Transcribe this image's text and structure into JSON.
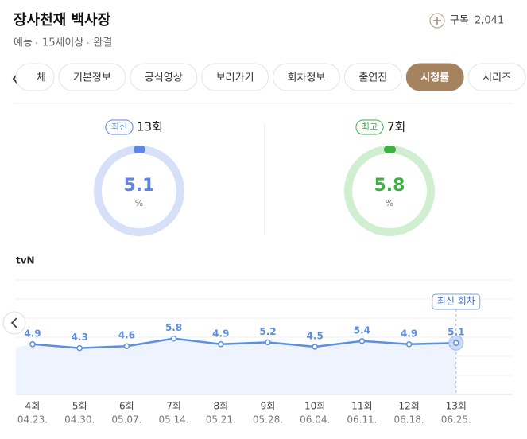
{
  "header": {
    "title": "장사천재 백사장",
    "meta": [
      "예능",
      "15세이상",
      "완결"
    ],
    "subscribe_label": "구독",
    "subscribe_count": "2,041"
  },
  "tabs": {
    "items": [
      "체",
      "기본정보",
      "공식영상",
      "보러가기",
      "회차정보",
      "출연진",
      "시청률",
      "시리즈"
    ],
    "active": 6
  },
  "stats": [
    {
      "badge": "최신",
      "episode": "13회",
      "value": 5.1,
      "unit": "%",
      "color": "#5b86e5",
      "ring_color": "#d6e0f8"
    },
    {
      "badge": "최고",
      "episode": "7회",
      "value": 5.8,
      "unit": "%",
      "color": "#3cb043",
      "ring_color": "#d0efd0"
    }
  ],
  "chart_data": {
    "type": "line",
    "title": "tvN",
    "categories": [
      "4회",
      "5회",
      "6회",
      "7회",
      "8회",
      "9회",
      "10회",
      "11회",
      "12회",
      "13회"
    ],
    "dates": [
      "04.23.",
      "04.30.",
      "05.07.",
      "05.14.",
      "05.21.",
      "05.28.",
      "06.04.",
      "06.11.",
      "06.18.",
      "06.25."
    ],
    "values": [
      4.9,
      4.3,
      4.6,
      5.8,
      4.9,
      5.2,
      4.5,
      5.4,
      4.9,
      5.1
    ],
    "color": "#5b8fe3",
    "ylim": [
      -3,
      15
    ],
    "grid": true,
    "annotation": "최신 회차"
  }
}
